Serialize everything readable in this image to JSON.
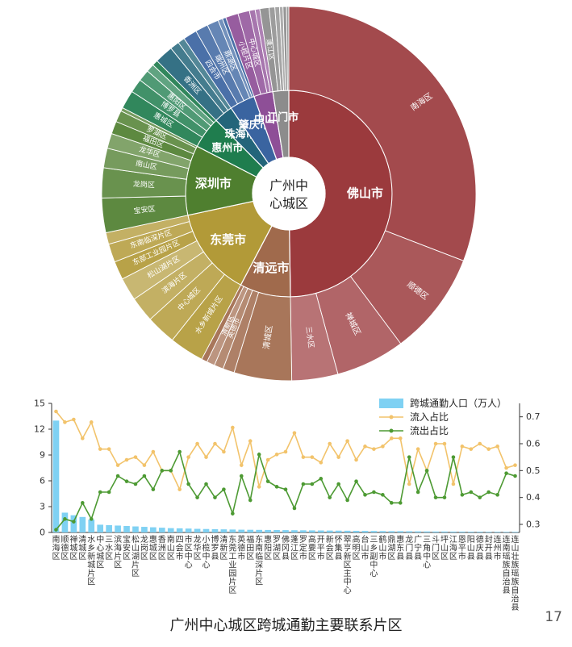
{
  "page": {
    "caption": "广州中心城区跨城通勤主要联系片区",
    "page_number": "17"
  },
  "chart_data": [
    {
      "type": "sunburst",
      "center_label": "广州中心城区",
      "colors": {
        "佛山市": "#9b3a3d",
        "清远市": "#a06a4c",
        "东莞市": "#b29a38",
        "深圳市": "#4f7f2f",
        "惠州市": "#1f7d4e",
        "珠海市": "#23657a",
        "肇庆市": "#3a64a0",
        "中山市": "#8e4f97",
        "江门市": "#8c8c8c"
      },
      "cities": [
        {
          "name": "佛山市",
          "value": 50,
          "districts": [
            {
              "name": "南海区",
              "value": 31
            },
            {
              "name": "顺德区",
              "value": 9
            },
            {
              "name": "禅城区",
              "value": 6
            },
            {
              "name": "三水区",
              "value": 4
            }
          ]
        },
        {
          "name": "清远市",
          "value": 8,
          "districts": [
            {
              "name": "清城区",
              "value": 5
            },
            {
              "name": "",
              "value": 1
            },
            {
              "name": "英德市",
              "value": 0.8
            },
            {
              "name": "清新区",
              "value": 0.7
            },
            {
              "name": "",
              "value": 0.5
            }
          ]
        },
        {
          "name": "东莞市",
          "value": 14,
          "districts": [
            {
              "name": "水乡新城片区",
              "value": 3
            },
            {
              "name": "中心城区",
              "value": 2.6
            },
            {
              "name": "滨海片区",
              "value": 2.2
            },
            {
              "name": "松山湖片区",
              "value": 2
            },
            {
              "name": "东部工业园片区",
              "value": 1.6
            },
            {
              "name": "东南临深片区",
              "value": 1.6
            },
            {
              "name": "",
              "value": 1
            }
          ]
        },
        {
          "name": "深圳市",
          "value": 11,
          "districts": [
            {
              "name": "宝安区",
              "value": 3
            },
            {
              "name": "龙岗区",
              "value": 2.6
            },
            {
              "name": "南山区",
              "value": 1.7
            },
            {
              "name": "龙华区",
              "value": 1.3
            },
            {
              "name": "福田区",
              "value": 1.1
            },
            {
              "name": "罗湖区",
              "value": 1
            },
            {
              "name": "",
              "value": 0.3
            }
          ]
        },
        {
          "name": "惠州市",
          "value": 5,
          "districts": [
            {
              "name": "惠城区",
              "value": 1.6
            },
            {
              "name": "博罗县",
              "value": 1.2
            },
            {
              "name": "惠阳区",
              "value": 1
            },
            {
              "name": "",
              "value": 0.7
            },
            {
              "name": "",
              "value": 0.5
            }
          ]
        },
        {
          "name": "珠海市",
          "value": 3,
          "districts": [
            {
              "name": "香洲区",
              "value": 1.6
            },
            {
              "name": "",
              "value": 0.8
            },
            {
              "name": "",
              "value": 0.6
            }
          ]
        },
        {
          "name": "肇庆市",
          "value": 4,
          "districts": [
            {
              "name": "四会市",
              "value": 1.2
            },
            {
              "name": "端州区",
              "value": 1.1
            },
            {
              "name": "鼎湖区",
              "value": 1
            },
            {
              "name": "",
              "value": 0.4
            },
            {
              "name": "",
              "value": 0.3
            }
          ]
        },
        {
          "name": "中山市",
          "value": 3,
          "districts": [
            {
              "name": "小榄片区",
              "value": 1.1
            },
            {
              "name": "中心城区",
              "value": 1
            },
            {
              "name": "",
              "value": 0.5
            },
            {
              "name": "",
              "value": 0.4
            }
          ]
        },
        {
          "name": "江门市",
          "value": 2.5,
          "districts": [
            {
              "name": "蓬江区",
              "value": 0.8
            },
            {
              "name": "",
              "value": 0.5
            },
            {
              "name": "",
              "value": 0.4
            },
            {
              "name": "",
              "value": 0.3
            },
            {
              "name": "",
              "value": 0.3
            },
            {
              "name": "",
              "value": 0.2
            }
          ]
        }
      ]
    },
    {
      "type": "bar+line",
      "legend_position": "top-right",
      "categories": [
        "南海区",
        "顺德区",
        "禅城区",
        "清城区",
        "水乡新城片区",
        "中心城区",
        "三水区",
        "滨海片区",
        "宝安区",
        "松山湖片区",
        "龙岗区",
        "惠城区",
        "香洲区",
        "南山区",
        "四会市",
        "市区中心",
        "龙华区",
        "小榄中心",
        "博罗县",
        "清新区",
        "东莞工业园片区",
        "英德市",
        "福田区",
        "东南临深片区",
        "惠阳区",
        "罗湖区",
        "佛冈县",
        "蓬江区",
        "罗定市",
        "高要区",
        "开平市",
        "新会区",
        "怀集县",
        "翠亨新区主中心",
        "高明区",
        "台山市",
        "三乡副中心",
        "鹤山市",
        "鼎湖区",
        "惠东县",
        "龙门县",
        "广宁县",
        "三角中心",
        "斗门区",
        "坪山区",
        "江海区",
        "恩平市",
        "阳山县",
        "德庆县",
        "封开县",
        "连州市",
        "连南瑶族自治县",
        "连山壮族瑶族自治县"
      ],
      "yleft_ticks": [
        0,
        3,
        6,
        9,
        12,
        15
      ],
      "yright_ticks": [
        0.3,
        0.4,
        0.5,
        0.6,
        0.7
      ],
      "ylim_left": [
        0,
        15
      ],
      "ylim_right": [
        0.27,
        0.75
      ],
      "grid": false,
      "series": [
        {
          "name": "跨城通勤人口（万人）",
          "kind": "bar",
          "axis": "left",
          "color": "#7fd1f3",
          "values": [
            13,
            2.3,
            2.0,
            1.8,
            1.5,
            0.9,
            0.85,
            0.8,
            0.75,
            0.7,
            0.65,
            0.6,
            0.55,
            0.5,
            0.48,
            0.45,
            0.42,
            0.4,
            0.38,
            0.36,
            0.34,
            0.32,
            0.31,
            0.3,
            0.29,
            0.28,
            0.27,
            0.26,
            0.25,
            0.24,
            0.23,
            0.22,
            0.21,
            0.2,
            0.19,
            0.18,
            0.17,
            0.16,
            0.15,
            0.15,
            0.14,
            0.13,
            0.12,
            0.11,
            0.11,
            0.1,
            0.1,
            0.09,
            0.09,
            0.08,
            0.08,
            0.07,
            0.07
          ]
        },
        {
          "name": "流入占比",
          "kind": "line",
          "axis": "right",
          "color": "#f2c36b",
          "values": [
            0.72,
            0.68,
            0.69,
            0.62,
            0.68,
            0.58,
            0.58,
            0.52,
            0.54,
            0.55,
            0.52,
            0.57,
            0.5,
            0.5,
            0.43,
            0.55,
            0.6,
            0.55,
            0.6,
            0.57,
            0.66,
            0.52,
            0.61,
            0.44,
            0.54,
            0.56,
            0.57,
            0.64,
            0.55,
            0.55,
            0.53,
            0.6,
            0.55,
            0.61,
            0.54,
            0.59,
            0.58,
            0.59,
            0.62,
            0.62,
            0.45,
            0.58,
            0.5,
            0.6,
            0.6,
            0.45,
            0.59,
            0.58,
            0.6,
            0.58,
            0.59,
            0.51,
            0.52
          ]
        },
        {
          "name": "流出占比",
          "kind": "line",
          "axis": "right",
          "color": "#4d9a33",
          "values": [
            0.28,
            0.32,
            0.31,
            0.38,
            0.32,
            0.42,
            0.42,
            0.48,
            0.46,
            0.45,
            0.48,
            0.43,
            0.5,
            0.5,
            0.57,
            0.45,
            0.4,
            0.45,
            0.4,
            0.43,
            0.34,
            0.48,
            0.39,
            0.56,
            0.46,
            0.44,
            0.43,
            0.36,
            0.45,
            0.45,
            0.47,
            0.4,
            0.45,
            0.39,
            0.46,
            0.41,
            0.42,
            0.41,
            0.38,
            0.38,
            0.55,
            0.42,
            0.5,
            0.4,
            0.4,
            0.55,
            0.41,
            0.42,
            0.4,
            0.42,
            0.41,
            0.49,
            0.48
          ]
        }
      ]
    }
  ]
}
